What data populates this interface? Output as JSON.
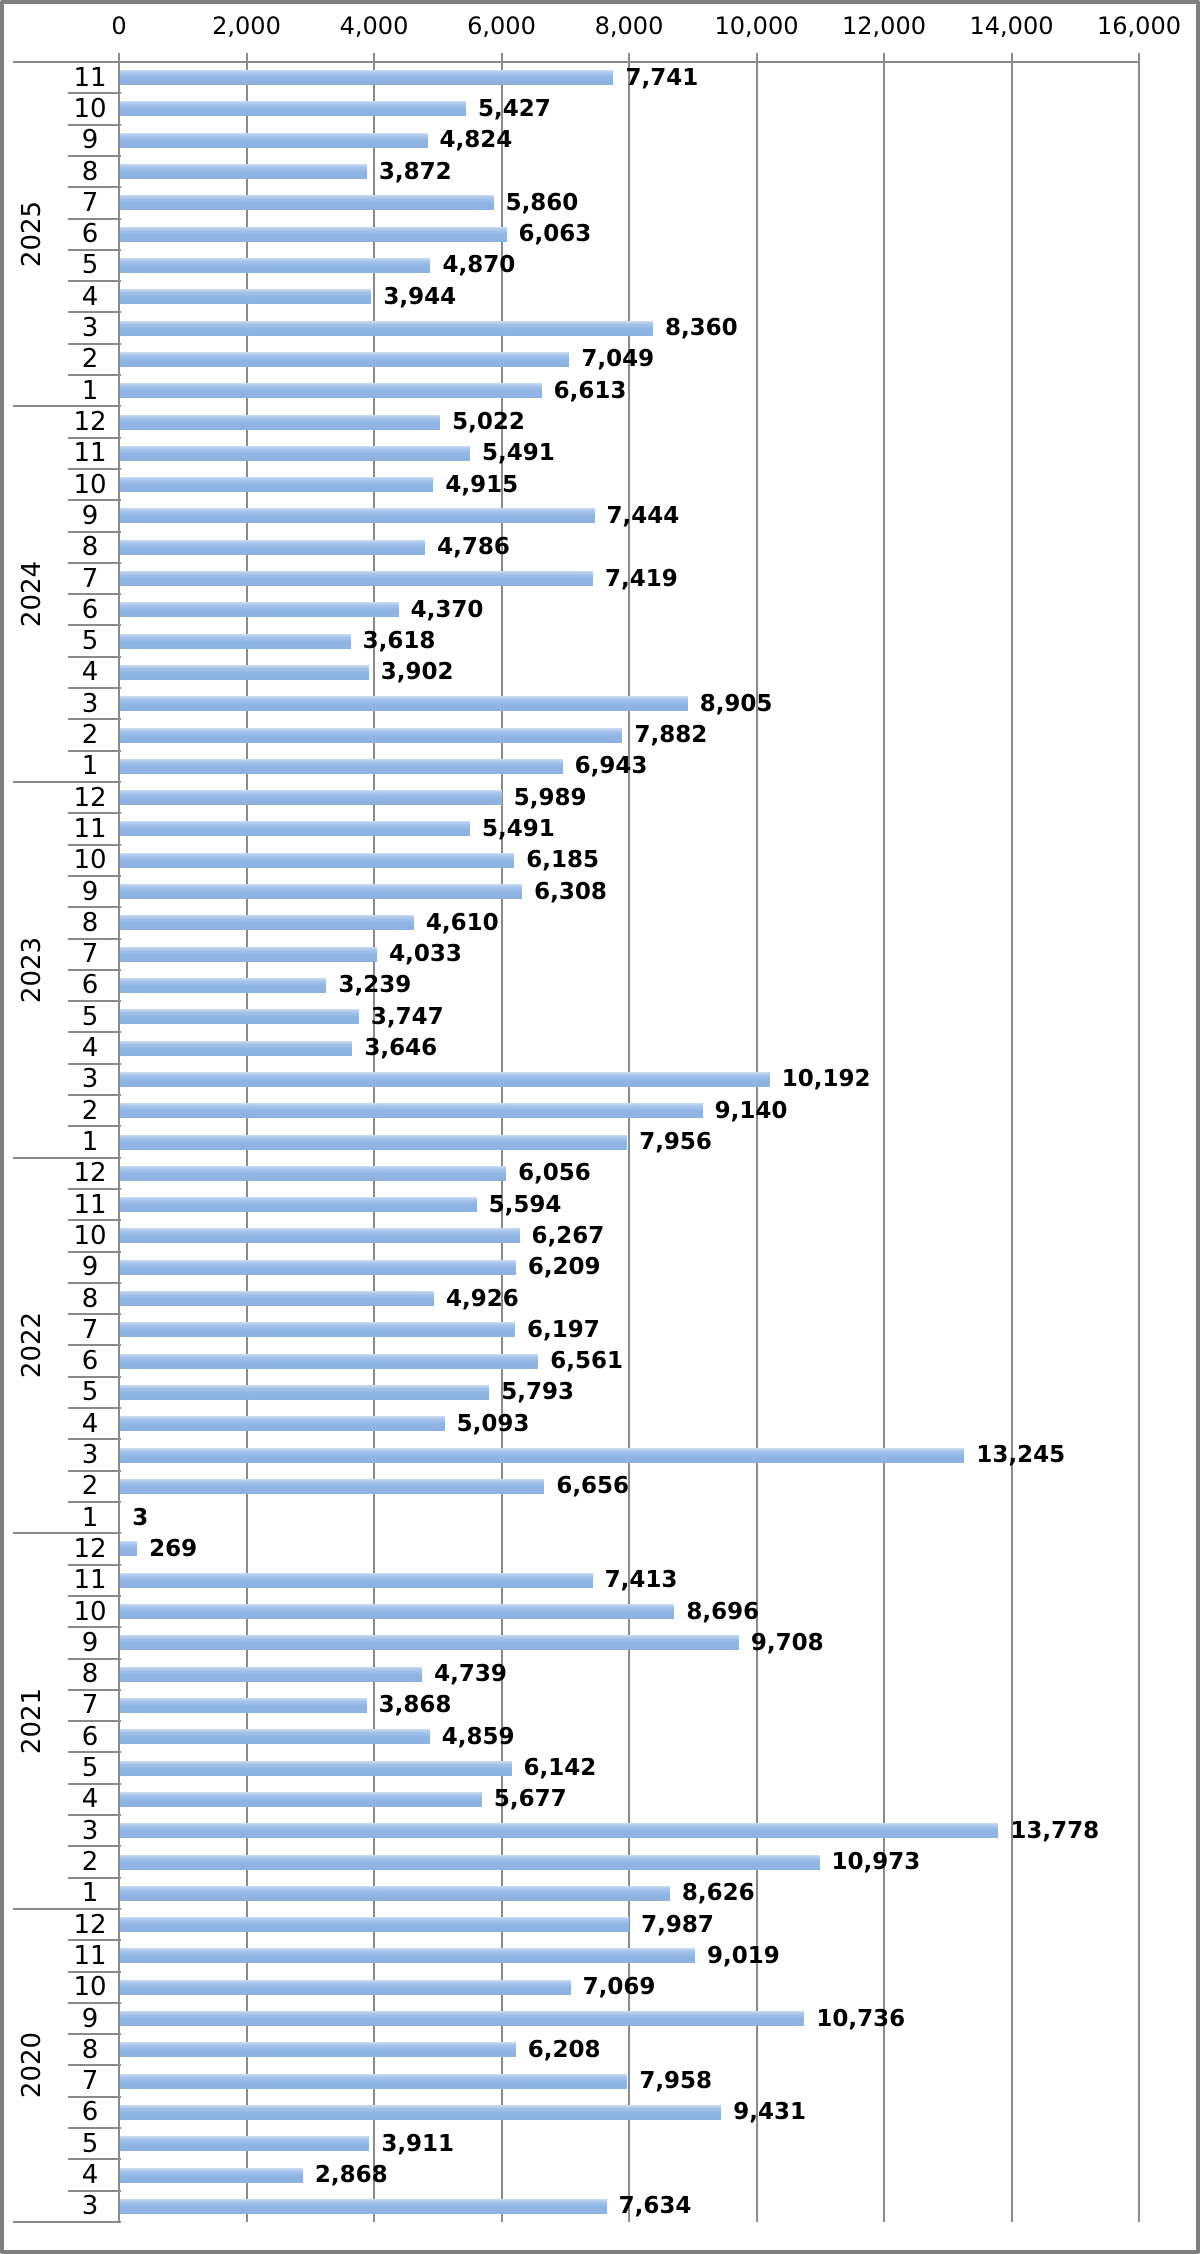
{
  "colors": {
    "bar_fill": "#8db2e1",
    "bar_fill_light": "#cddef2",
    "gridline": "#8a8a8a",
    "outer_border": "#7f7f7f",
    "text": "#000000",
    "background": "#ffffff"
  },
  "chart_data": {
    "type": "bar",
    "orientation": "horizontal",
    "title": "",
    "xlabel": "",
    "ylabel": "",
    "xlim": [
      0,
      16000
    ],
    "grid": true,
    "x_ticks": [
      0,
      2000,
      4000,
      6000,
      8000,
      10000,
      12000,
      14000,
      16000
    ],
    "x_tick_labels": [
      "0",
      "2,000",
      "4,000",
      "6,000",
      "8,000",
      "10,000",
      "12,000",
      "14,000",
      "16,000"
    ],
    "legend": "none",
    "groups": [
      {
        "year": "2025",
        "rows": [
          {
            "month": "11",
            "value": 7741,
            "label": "7,741"
          },
          {
            "month": "10",
            "value": 5427,
            "label": "5,427"
          },
          {
            "month": "9",
            "value": 4824,
            "label": "4,824"
          },
          {
            "month": "8",
            "value": 3872,
            "label": "3,872"
          },
          {
            "month": "7",
            "value": 5860,
            "label": "5,860"
          },
          {
            "month": "6",
            "value": 6063,
            "label": "6,063"
          },
          {
            "month": "5",
            "value": 4870,
            "label": "4,870"
          },
          {
            "month": "4",
            "value": 3944,
            "label": "3,944"
          },
          {
            "month": "3",
            "value": 8360,
            "label": "8,360"
          },
          {
            "month": "2",
            "value": 7049,
            "label": "7,049"
          },
          {
            "month": "1",
            "value": 6613,
            "label": "6,613"
          }
        ]
      },
      {
        "year": "2024",
        "rows": [
          {
            "month": "12",
            "value": 5022,
            "label": "5,022"
          },
          {
            "month": "11",
            "value": 5491,
            "label": "5,491"
          },
          {
            "month": "10",
            "value": 4915,
            "label": "4,915"
          },
          {
            "month": "9",
            "value": 7444,
            "label": "7,444"
          },
          {
            "month": "8",
            "value": 4786,
            "label": "4,786"
          },
          {
            "month": "7",
            "value": 7419,
            "label": "7,419"
          },
          {
            "month": "6",
            "value": 4370,
            "label": "4,370"
          },
          {
            "month": "5",
            "value": 3618,
            "label": "3,618"
          },
          {
            "month": "4",
            "value": 3902,
            "label": "3,902"
          },
          {
            "month": "3",
            "value": 8905,
            "label": "8,905"
          },
          {
            "month": "2",
            "value": 7882,
            "label": "7,882"
          },
          {
            "month": "1",
            "value": 6943,
            "label": "6,943"
          }
        ]
      },
      {
        "year": "2023",
        "rows": [
          {
            "month": "12",
            "value": 5989,
            "label": "5,989"
          },
          {
            "month": "11",
            "value": 5491,
            "label": "5,491"
          },
          {
            "month": "10",
            "value": 6185,
            "label": "6,185"
          },
          {
            "month": "9",
            "value": 6308,
            "label": "6,308"
          },
          {
            "month": "8",
            "value": 4610,
            "label": "4,610"
          },
          {
            "month": "7",
            "value": 4033,
            "label": "4,033"
          },
          {
            "month": "6",
            "value": 3239,
            "label": "3,239"
          },
          {
            "month": "5",
            "value": 3747,
            "label": "3,747"
          },
          {
            "month": "4",
            "value": 3646,
            "label": "3,646"
          },
          {
            "month": "3",
            "value": 10192,
            "label": "10,192"
          },
          {
            "month": "2",
            "value": 9140,
            "label": "9,140"
          },
          {
            "month": "1",
            "value": 7956,
            "label": "7,956"
          }
        ]
      },
      {
        "year": "2022",
        "rows": [
          {
            "month": "12",
            "value": 6056,
            "label": "6,056"
          },
          {
            "month": "11",
            "value": 5594,
            "label": "5,594"
          },
          {
            "month": "10",
            "value": 6267,
            "label": "6,267"
          },
          {
            "month": "9",
            "value": 6209,
            "label": "6,209"
          },
          {
            "month": "8",
            "value": 4926,
            "label": "4,926"
          },
          {
            "month": "7",
            "value": 6197,
            "label": "6,197"
          },
          {
            "month": "6",
            "value": 6561,
            "label": "6,561"
          },
          {
            "month": "5",
            "value": 5793,
            "label": "5,793"
          },
          {
            "month": "4",
            "value": 5093,
            "label": "5,093"
          },
          {
            "month": "3",
            "value": 13245,
            "label": "13,245"
          },
          {
            "month": "2",
            "value": 6656,
            "label": "6,656"
          },
          {
            "month": "1",
            "value": 3,
            "label": "3"
          }
        ]
      },
      {
        "year": "2021",
        "rows": [
          {
            "month": "12",
            "value": 269,
            "label": "269"
          },
          {
            "month": "11",
            "value": 7413,
            "label": "7,413"
          },
          {
            "month": "10",
            "value": 8696,
            "label": "8,696"
          },
          {
            "month": "9",
            "value": 9708,
            "label": "9,708"
          },
          {
            "month": "8",
            "value": 4739,
            "label": "4,739"
          },
          {
            "month": "7",
            "value": 3868,
            "label": "3,868"
          },
          {
            "month": "6",
            "value": 4859,
            "label": "4,859"
          },
          {
            "month": "5",
            "value": 6142,
            "label": "6,142"
          },
          {
            "month": "4",
            "value": 5677,
            "label": "5,677"
          },
          {
            "month": "3",
            "value": 13778,
            "label": "13,778"
          },
          {
            "month": "2",
            "value": 10973,
            "label": "10,973"
          },
          {
            "month": "1",
            "value": 8626,
            "label": "8,626"
          }
        ]
      },
      {
        "year": "2020",
        "rows": [
          {
            "month": "12",
            "value": 7987,
            "label": "7,987"
          },
          {
            "month": "11",
            "value": 9019,
            "label": "9,019"
          },
          {
            "month": "10",
            "value": 7069,
            "label": "7,069"
          },
          {
            "month": "9",
            "value": 10736,
            "label": "10,736"
          },
          {
            "month": "8",
            "value": 6208,
            "label": "6,208"
          },
          {
            "month": "7",
            "value": 7958,
            "label": "7,958"
          },
          {
            "month": "6",
            "value": 9431,
            "label": "9,431"
          },
          {
            "month": "5",
            "value": 3911,
            "label": "3,911"
          },
          {
            "month": "4",
            "value": 2868,
            "label": "2,868"
          },
          {
            "month": "3",
            "value": 7634,
            "label": "7,634"
          }
        ]
      }
    ]
  }
}
